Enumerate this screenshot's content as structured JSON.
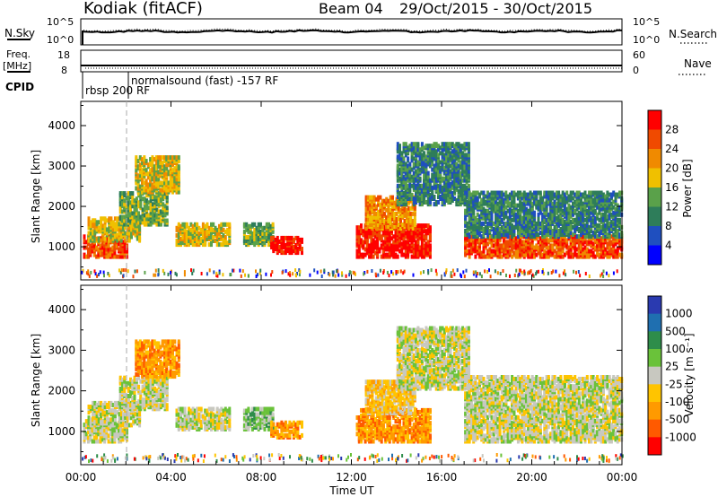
{
  "header": {
    "station": "Kodiak (fitACF)",
    "beam": "Beam 04",
    "date_range": "29/Oct/2015 - 30/Oct/2015"
  },
  "colors": {
    "power": [
      "#0000ff",
      "#1f4fbf",
      "#2e7d5a",
      "#5aa14a",
      "#f0c000",
      "#f08a00",
      "#f04a00",
      "#ff0000"
    ],
    "velocity": [
      "#ff0000",
      "#ff5a00",
      "#ff9a00",
      "#ffc400",
      "#c8c8c0",
      "#6ac23a",
      "#2e8d4a",
      "#1f6fb0",
      "#2a3ab0"
    ]
  },
  "chart_data": [
    {
      "type": "line",
      "panel": "noise",
      "left_label_top": "N.Sky",
      "left_ticks": [
        "10^5",
        "10^0"
      ],
      "right_label_top": "N.Search",
      "right_ticks": [
        "10^5",
        "10^0"
      ],
      "x": [
        0,
        24
      ],
      "note_series": "sky noise level near upper band throughout"
    },
    {
      "type": "line",
      "panel": "freq_nave",
      "left_label": "Freq.\n[MHz]",
      "left_ticks": [
        "18",
        "8"
      ],
      "right_label": "Nave",
      "right_ticks": [
        "60",
        "0"
      ],
      "cpid_label": "CPID",
      "cpid_entries": [
        "rbsp 200 RF",
        "normalsound (fast) -157 RF"
      ]
    },
    {
      "type": "heatmap",
      "panel": "power",
      "ylabel": "Slant Range [km]",
      "yticks": [
        1000,
        2000,
        3000,
        4000
      ],
      "ylim": [
        180,
        4600
      ],
      "xlim": [
        0,
        24
      ],
      "colorbar_label": "Power [dB]",
      "colorbar_ticks": [
        "28",
        "24",
        "20",
        "16",
        "12",
        "8",
        "4"
      ],
      "bands": [
        {
          "t0": 0.1,
          "t1": 2.0,
          "r0": 700,
          "r1": 1200,
          "level": 6
        },
        {
          "t0": 0.3,
          "t1": 2.6,
          "r0": 1100,
          "r1": 1650,
          "level": 4
        },
        {
          "t0": 1.7,
          "t1": 3.8,
          "r0": 1500,
          "r1": 2300,
          "level": 3
        },
        {
          "t0": 2.4,
          "t1": 4.3,
          "r0": 2300,
          "r1": 3200,
          "level": 4
        },
        {
          "t0": 4.2,
          "t1": 6.6,
          "r0": 1000,
          "r1": 1500,
          "level": 4
        },
        {
          "t0": 7.2,
          "t1": 8.5,
          "r0": 1000,
          "r1": 1500,
          "level": 3
        },
        {
          "t0": 8.4,
          "t1": 9.8,
          "r0": 800,
          "r1": 1200,
          "level": 7
        },
        {
          "t0": 12.2,
          "t1": 15.5,
          "r0": 700,
          "r1": 1500,
          "level": 7
        },
        {
          "t0": 12.6,
          "t1": 14.8,
          "r0": 1400,
          "r1": 2200,
          "level": 5
        },
        {
          "t0": 14.0,
          "t1": 17.2,
          "r0": 2000,
          "r1": 3500,
          "level": 2
        },
        {
          "t0": 17.0,
          "t1": 24.0,
          "r0": 700,
          "r1": 1200,
          "level": 6
        },
        {
          "t0": 17.0,
          "t1": 24.0,
          "r0": 1200,
          "r1": 2300,
          "level": 2
        }
      ]
    },
    {
      "type": "heatmap",
      "panel": "velocity",
      "ylabel": "Slant Range [km]",
      "yticks": [
        1000,
        2000,
        3000,
        4000
      ],
      "ylim": [
        180,
        4600
      ],
      "xlim": [
        0,
        24
      ],
      "xlabel": "Time UT",
      "xticks": [
        "00:00",
        "04:00",
        "08:00",
        "12:00",
        "16:00",
        "20:00",
        "00:00"
      ],
      "colorbar_label": "Velocity [m s^-1]",
      "colorbar_ticks": [
        "1000",
        "500",
        "100",
        "25",
        "-25",
        "-100",
        "-500",
        "-1000"
      ],
      "bands": [
        {
          "t0": 0.1,
          "t1": 2.0,
          "r0": 700,
          "r1": 1200,
          "level": 4
        },
        {
          "t0": 0.3,
          "t1": 2.6,
          "r0": 1100,
          "r1": 1650,
          "level": 4
        },
        {
          "t0": 1.7,
          "t1": 3.8,
          "r0": 1500,
          "r1": 2300,
          "level": 4
        },
        {
          "t0": 2.4,
          "t1": 4.3,
          "r0": 2300,
          "r1": 3200,
          "level": 2
        },
        {
          "t0": 4.2,
          "t1": 6.6,
          "r0": 1000,
          "r1": 1500,
          "level": 4
        },
        {
          "t0": 7.2,
          "t1": 8.5,
          "r0": 1000,
          "r1": 1500,
          "level": 5
        },
        {
          "t0": 8.4,
          "t1": 9.8,
          "r0": 800,
          "r1": 1200,
          "level": 2
        },
        {
          "t0": 12.2,
          "t1": 15.5,
          "r0": 700,
          "r1": 1500,
          "level": 2
        },
        {
          "t0": 12.6,
          "t1": 14.8,
          "r0": 1400,
          "r1": 2200,
          "level": 3
        },
        {
          "t0": 14.0,
          "t1": 17.2,
          "r0": 2000,
          "r1": 3500,
          "level": 4
        },
        {
          "t0": 17.0,
          "t1": 24.0,
          "r0": 700,
          "r1": 1200,
          "level": 4
        },
        {
          "t0": 17.0,
          "t1": 24.0,
          "r0": 1200,
          "r1": 2300,
          "level": 4
        }
      ]
    }
  ]
}
